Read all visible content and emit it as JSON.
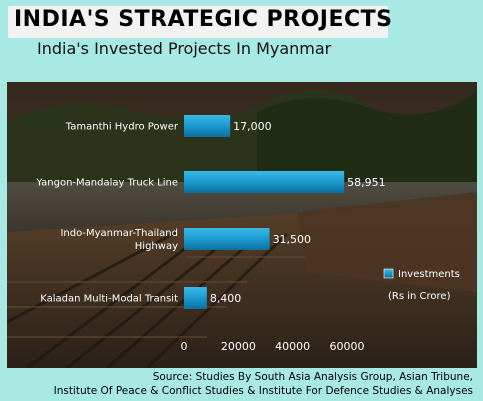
{
  "header": {
    "title": "INDIA'S STRATEGIC PROJECTS",
    "subtitle": "India's Invested Projects In Myanmar"
  },
  "source": {
    "line1": "Source: Studies By South Asia Analysis Group, Asian Tribune,",
    "line2": "Institute Of Peace & Conflict Studies & Institute For Defence Studies & Analyses"
  },
  "colors": {
    "background": "#a9e9e4",
    "bar": "#1aa0d0",
    "text_on_photo": "#ffffff"
  },
  "chart_data": {
    "type": "bar",
    "orientation": "horizontal",
    "categories": [
      "Tamanthi Hydro Power",
      "Yangon-Mandalay Truck Line",
      "Indo-Myanmar-Thailand Highway",
      "Kaladan Multi-Modal Transit"
    ],
    "category_lines": [
      [
        "Tamanthi Hydro Power"
      ],
      [
        "Yangon-Mandalay Truck Line"
      ],
      [
        "Indo-Myanmar-Thailand",
        "Highway"
      ],
      [
        "Kaladan Multi-Modal Transit"
      ]
    ],
    "series": [
      {
        "name": "Investments",
        "values": [
          17000,
          58951,
          31500,
          8400
        ],
        "value_labels": [
          "17,000",
          "58,951",
          "31,500",
          "8,400"
        ]
      }
    ],
    "xlim": [
      0,
      60000
    ],
    "xticks": [
      0,
      20000,
      40000,
      60000
    ],
    "xtick_labels": [
      "0",
      "20000",
      "40000",
      "60000"
    ],
    "legend": {
      "entry": "Investments",
      "note": "(Rs in Crore)",
      "position": "right"
    },
    "grid": false
  }
}
